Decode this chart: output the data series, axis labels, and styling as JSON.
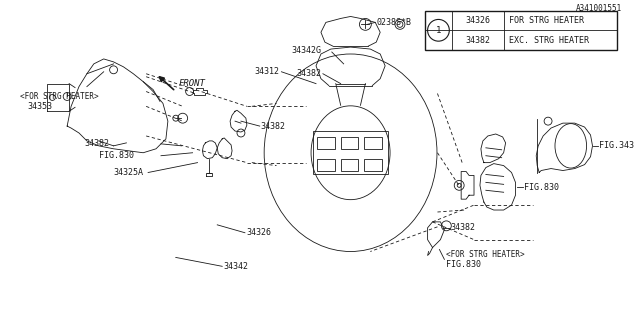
{
  "bg_color": "#ffffff",
  "line_color": "#1a1a1a",
  "diagram_id": "A341001551",
  "legend_rows": [
    {
      "num": "34326",
      "desc": "FOR STRG HEATER"
    },
    {
      "num": "34382",
      "desc": "EXC. STRG HEATER"
    }
  ]
}
